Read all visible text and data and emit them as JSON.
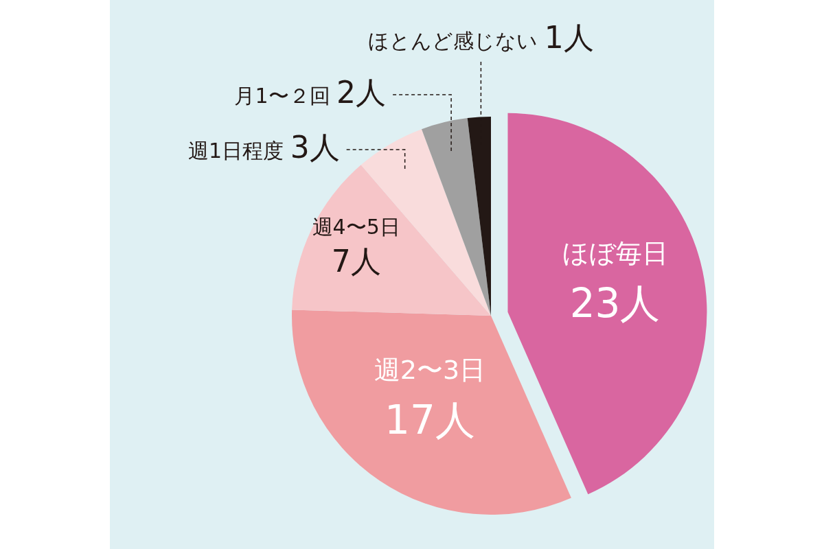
{
  "chart_data": {
    "type": "pie",
    "categories": [
      "ほぼ毎日",
      "週2〜3日",
      "週4〜5日",
      "週1日程度",
      "月1〜２回",
      "ほとんど感じない"
    ],
    "values": [
      23,
      17,
      7,
      3,
      2,
      1
    ],
    "value_labels": [
      "23人",
      "17人",
      "7人",
      "3人",
      "2人",
      "1人"
    ],
    "colors": [
      "#d966a0",
      "#f09ca0",
      "#f6c5c8",
      "#f9dcdc",
      "#a0a0a0",
      "#231815"
    ]
  }
}
